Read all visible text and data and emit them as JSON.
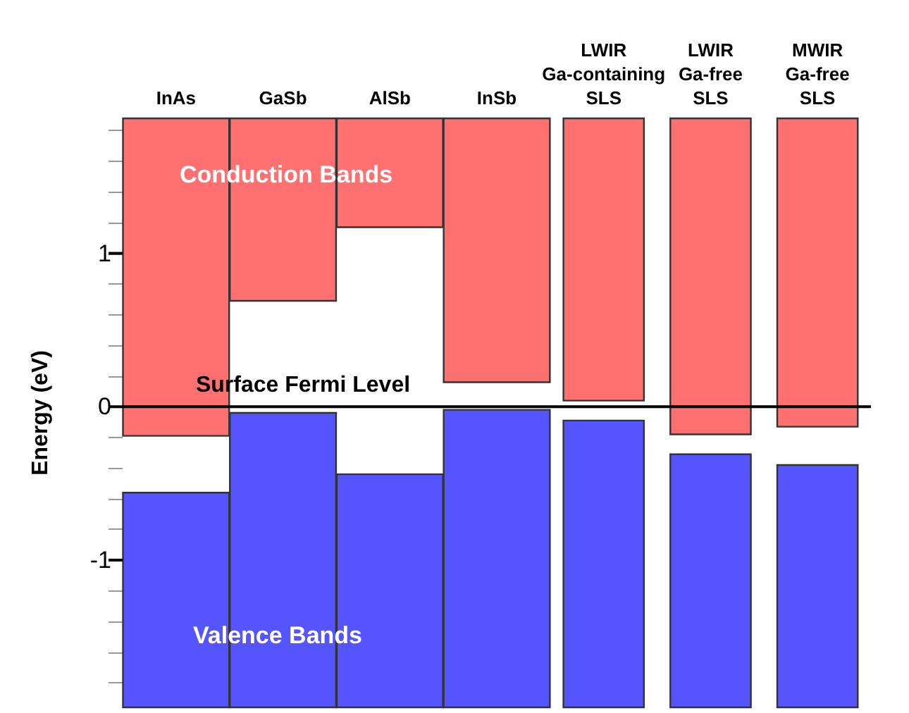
{
  "chart_data": {
    "type": "bar",
    "ylabel": "Energy (eV)",
    "categories": [
      "InAs",
      "GaSb",
      "AlSb",
      "InSb",
      "LWIR\nGa-containing\nSLS",
      "LWIR\nGa-free\nSLS",
      "MWIR\nGa-free\nSLS"
    ],
    "series": [
      {
        "color": "#ff7070",
        "base": [
          -0.19,
          0.69,
          1.17,
          0.16,
          0.04,
          -0.18,
          -0.13
        ],
        "values": [
          2.07,
          1.19,
          0.71,
          1.72,
          1.84,
          2.06,
          2.01
        ]
      },
      {
        "color": "#5555ff",
        "base": [
          -1.96,
          -1.96,
          -1.96,
          -1.96,
          -1.96,
          -1.96,
          -1.96
        ],
        "values": [
          1.4,
          1.92,
          1.52,
          1.94,
          1.87,
          1.65,
          1.58
        ]
      }
    ],
    "ylim": [
      -1.96,
      1.88
    ],
    "yticks": [
      {
        "value": -1.8,
        "label": null
      },
      {
        "value": -1.6,
        "label": null
      },
      {
        "value": -1.4,
        "label": null
      },
      {
        "value": -1.2,
        "label": null
      },
      -1,
      {
        "value": -0.8,
        "label": null
      },
      {
        "value": -0.6,
        "label": null
      },
      {
        "value": -0.4,
        "label": null
      },
      {
        "value": -0.2,
        "label": null
      },
      0,
      {
        "value": 0.2,
        "label": null
      },
      {
        "value": 0.4,
        "label": null
      },
      {
        "value": 0.6,
        "label": null
      },
      {
        "value": 0.8,
        "label": null
      },
      1,
      {
        "value": 1.2,
        "label": null
      },
      {
        "value": 1.4,
        "label": null
      },
      {
        "value": 1.6,
        "label": null
      },
      {
        "value": 1.8,
        "label": null
      }
    ],
    "ref_lines": [
      {
        "axis": "y",
        "value": 0,
        "label": "Surface Fermi Level",
        "color": "#000000"
      }
    ],
    "annotations": [
      "Conduction Bands",
      "Valence Bands"
    ],
    "grid": false
  }
}
